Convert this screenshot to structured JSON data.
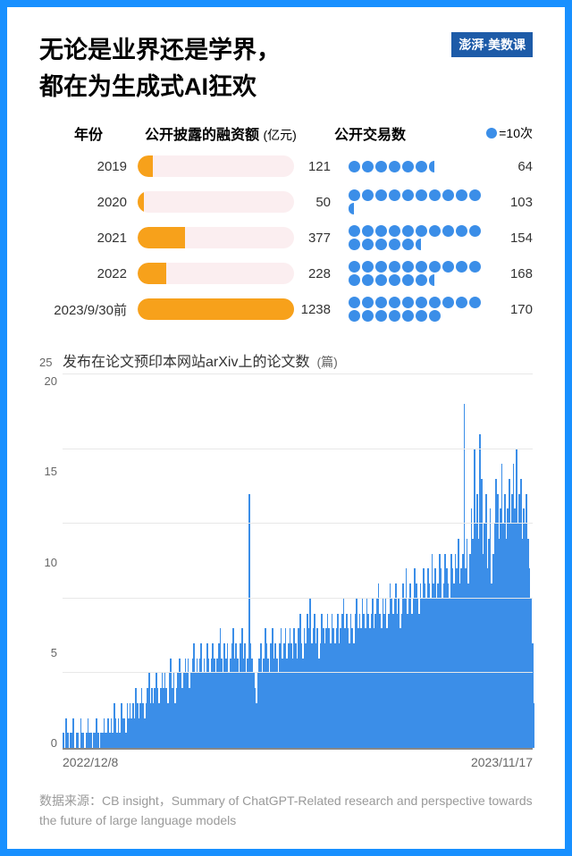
{
  "title_line1": "无论是业界还是学界，",
  "title_line2": "都在为生成式AI狂欢",
  "logo_text": "澎湃·美数课",
  "table": {
    "header_year": "年份",
    "header_funding": "公开披露的融资额",
    "header_funding_unit": "(亿元)",
    "header_deals": "公开交易数",
    "legend_text": "=10次",
    "bar_color": "#f7a11b",
    "bar_track_color": "#fbeef0",
    "dot_color": "#3b8ee8",
    "max_funding": 1238,
    "rows": [
      {
        "year": "2019",
        "funding": 121,
        "deals": 64
      },
      {
        "year": "2020",
        "funding": 50,
        "deals": 103
      },
      {
        "year": "2021",
        "funding": 377,
        "deals": 154
      },
      {
        "year": "2022",
        "funding": 228,
        "deals": 168
      },
      {
        "year": "2023/9/30前",
        "funding": 1238,
        "deals": 170
      }
    ]
  },
  "chart": {
    "title": "发布在论文预印本网站arXiv上的论文数",
    "unit": "(篇)",
    "y_max": 25,
    "y_ticks": [
      25,
      20,
      15,
      10,
      5,
      0
    ],
    "x_start": "2022/12/8",
    "x_end": "2023/11/17",
    "bar_color": "#3b8ee8",
    "grid_color": "#e8e8e8",
    "axis_color": "#888888",
    "values": [
      1,
      0,
      2,
      1,
      0,
      1,
      1,
      2,
      0,
      1,
      1,
      0,
      2,
      1,
      1,
      0,
      1,
      2,
      1,
      1,
      0,
      1,
      1,
      2,
      1,
      0,
      1,
      1,
      2,
      1,
      1,
      2,
      1,
      2,
      1,
      3,
      2,
      1,
      2,
      1,
      3,
      2,
      2,
      1,
      3,
      2,
      3,
      2,
      3,
      2,
      4,
      3,
      2,
      3,
      4,
      3,
      2,
      3,
      4,
      5,
      3,
      4,
      3,
      4,
      5,
      4,
      3,
      4,
      5,
      4,
      5,
      4,
      3,
      5,
      6,
      4,
      5,
      3,
      4,
      5,
      6,
      5,
      4,
      5,
      6,
      5,
      6,
      4,
      5,
      6,
      7,
      5,
      6,
      5,
      6,
      7,
      5,
      6,
      5,
      7,
      6,
      5,
      6,
      7,
      6,
      5,
      6,
      7,
      8,
      6,
      5,
      7,
      6,
      7,
      5,
      6,
      7,
      8,
      6,
      7,
      6,
      5,
      7,
      8,
      6,
      7,
      5,
      6,
      17,
      7,
      6,
      5,
      4,
      3,
      5,
      6,
      7,
      5,
      6,
      8,
      7,
      6,
      5,
      7,
      8,
      6,
      7,
      6,
      5,
      7,
      8,
      6,
      7,
      8,
      6,
      7,
      8,
      7,
      6,
      8,
      7,
      6,
      8,
      9,
      7,
      6,
      8,
      7,
      9,
      8,
      10,
      7,
      8,
      9,
      7,
      8,
      6,
      7,
      9,
      8,
      7,
      8,
      9,
      8,
      7,
      9,
      8,
      7,
      8,
      9,
      7,
      8,
      9,
      10,
      8,
      9,
      8,
      7,
      9,
      8,
      7,
      9,
      10,
      8,
      9,
      8,
      10,
      9,
      8,
      10,
      9,
      8,
      9,
      10,
      8,
      9,
      10,
      11,
      9,
      8,
      10,
      9,
      10,
      8,
      9,
      11,
      10,
      9,
      10,
      11,
      9,
      10,
      8,
      9,
      11,
      10,
      12,
      9,
      10,
      11,
      9,
      10,
      12,
      11,
      10,
      9,
      11,
      10,
      12,
      11,
      10,
      12,
      11,
      10,
      13,
      11,
      12,
      10,
      11,
      13,
      12,
      10,
      11,
      13,
      12,
      11,
      10,
      13,
      12,
      11,
      13,
      12,
      14,
      11,
      12,
      13,
      23,
      12,
      14,
      11,
      13,
      16,
      14,
      20,
      15,
      17,
      14,
      21,
      18,
      13,
      15,
      17,
      12,
      14,
      16,
      11,
      13,
      15,
      18,
      17,
      14,
      16,
      19,
      15,
      17,
      14,
      16,
      18,
      15,
      17,
      19,
      16,
      20,
      15,
      17,
      18,
      14,
      16,
      15,
      17,
      14,
      12,
      10,
      7,
      3
    ]
  },
  "source_label": "数据来源：",
  "source_text": "CB insight，Summary of ChatGPT-Related research and perspective towards the future of large language models"
}
